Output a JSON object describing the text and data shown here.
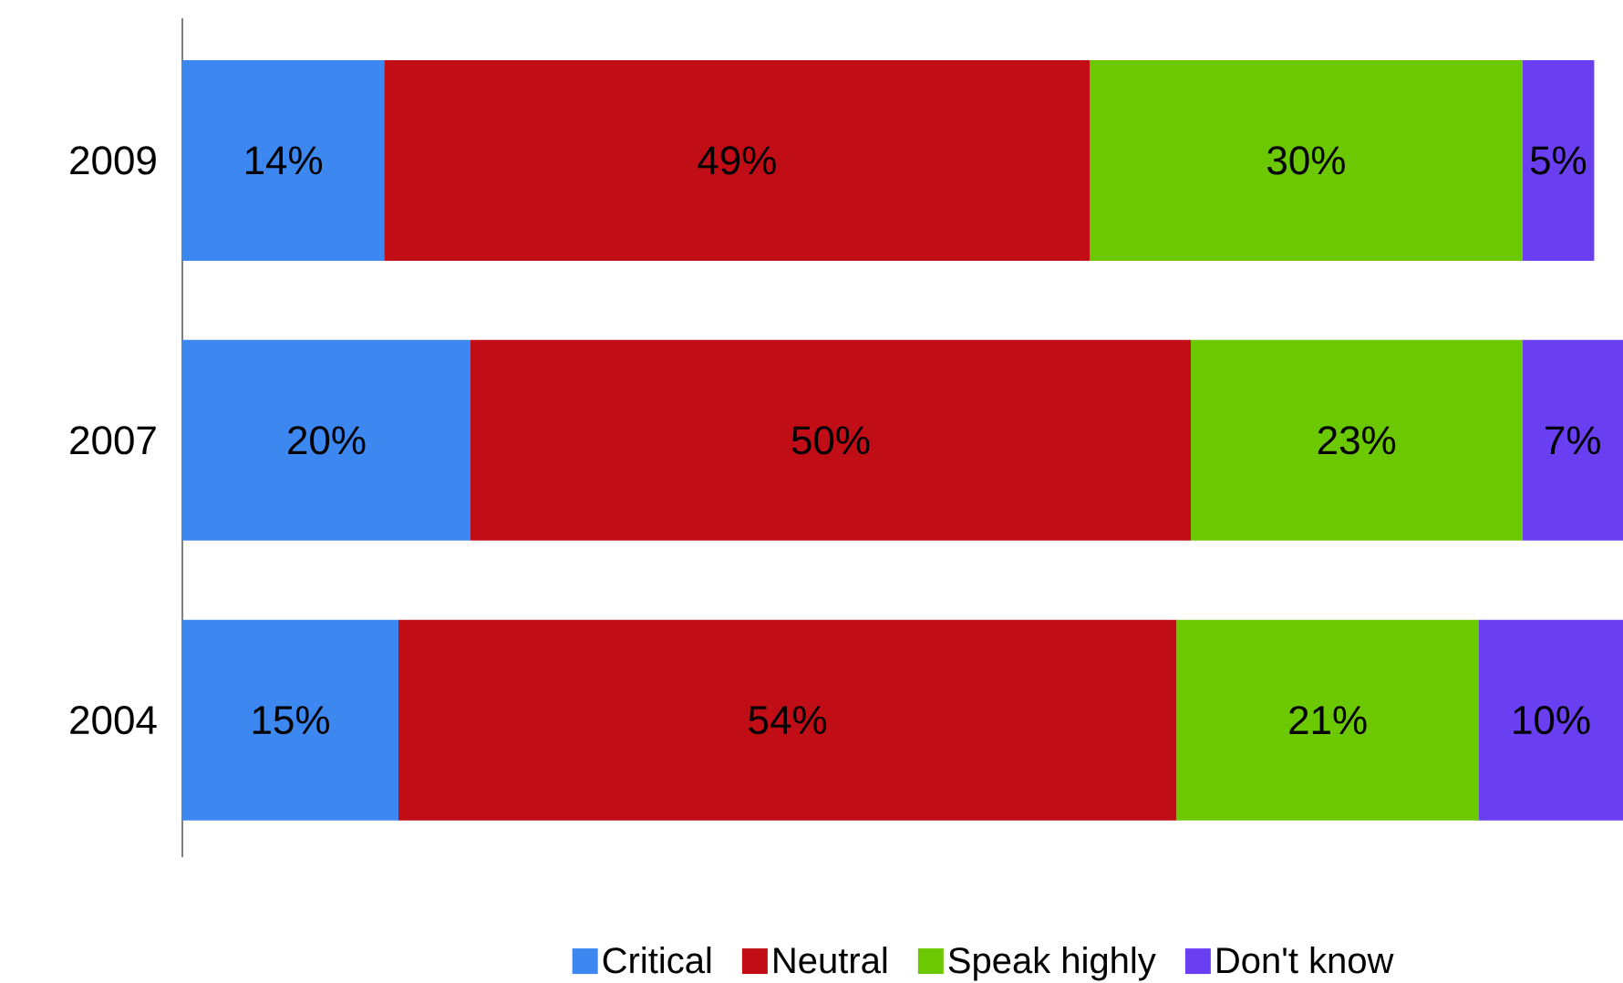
{
  "chart_data": {
    "type": "bar",
    "orientation": "horizontal",
    "stacked": true,
    "legend": "bottom",
    "categories": [
      "2009",
      "2007",
      "2004"
    ],
    "series": [
      {
        "name": "Critical",
        "color": "#3d87f0",
        "values": [
          14,
          20,
          15
        ],
        "value_labels": [
          "14%",
          "20%",
          "15%"
        ]
      },
      {
        "name": "Neutral",
        "color": "#c00d16",
        "values": [
          49,
          50,
          54
        ],
        "value_labels": [
          "49%",
          "50%",
          "54%"
        ]
      },
      {
        "name": "Speak highly",
        "color": "#6cc800",
        "values": [
          30,
          23,
          21
        ],
        "value_labels": [
          "30%",
          "23%",
          "21%"
        ]
      },
      {
        "name": "Don't know",
        "color": "#6a3ff2",
        "values": [
          5,
          7,
          10
        ],
        "value_labels": [
          "5%",
          "7%",
          "10%"
        ]
      }
    ]
  }
}
